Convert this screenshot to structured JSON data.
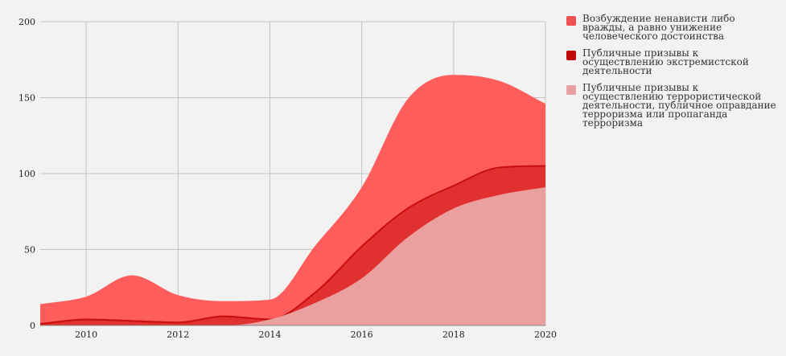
{
  "chart_data": {
    "type": "area",
    "x": [
      2009,
      2010,
      2011,
      2012,
      2013,
      2014,
      2015,
      2016,
      2017,
      2018,
      2019,
      2020
    ],
    "xticks": [
      "2010",
      "2012",
      "2014",
      "2016",
      "2018",
      "2020"
    ],
    "yticks": [
      "0",
      "50",
      "100",
      "150",
      "200"
    ],
    "ylim": [
      0,
      200
    ],
    "xlim": [
      2009,
      2020
    ],
    "grid": true,
    "legend_position": "right",
    "stacked_outlines": [
      {
        "values": [
          14,
          19,
          33,
          20,
          16,
          17,
          53,
          91,
          149,
          165,
          161,
          146
        ]
      },
      {
        "values": [
          1,
          4,
          3,
          2,
          6,
          4,
          22,
          52,
          77,
          92,
          104,
          105
        ]
      },
      {
        "values": [
          0,
          0,
          0,
          0,
          0,
          4,
          15,
          31,
          58,
          77,
          86,
          91
        ]
      }
    ],
    "series": [
      {
        "name": "Возбуждение ненависти либо вражды, а равно унижение человеческого достоинства",
        "color": "#ff5c5c"
      },
      {
        "name": "Публичные призывы к осуществлению экстремистской деятельности",
        "color": "#c80d0d"
      },
      {
        "name": "Публичные призывы к осуществлению террористической деятельности, публичное оправдание терроризма или пропаганда терроризма",
        "color": "#eba0a0"
      }
    ]
  },
  "legend": {
    "items": [
      {
        "label": "Возбуждение ненависти либо вражды, а равно унижение человеческого достоинства",
        "color": "#f05050"
      },
      {
        "label": "Публичные призывы к осуществлению экстремистской деятельности",
        "color": "#c00808"
      },
      {
        "label": "Публичные призывы к осуществлению террористической деятельности, публичное оправдание терроризма или пропаганда терроризма",
        "color": "#eaa0a0"
      }
    ]
  }
}
